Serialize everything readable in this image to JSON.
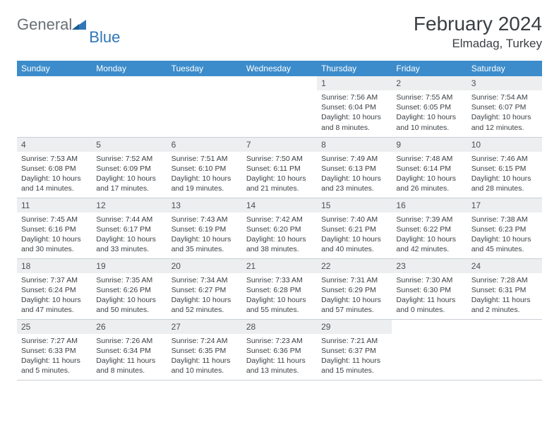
{
  "brand": {
    "word1": "General",
    "word2": "Blue",
    "color_gray": "#6a6f73",
    "color_blue": "#2f77b8"
  },
  "title": "February 2024",
  "location": "Elmadag, Turkey",
  "theme": {
    "header_bg": "#3c8ccb",
    "header_fg": "#ffffff",
    "daynum_bg": "#eceeef",
    "border": "#c9d0d6",
    "text": "#3a3f44"
  },
  "weekdays": [
    "Sunday",
    "Monday",
    "Tuesday",
    "Wednesday",
    "Thursday",
    "Friday",
    "Saturday"
  ],
  "leading_blanks": 4,
  "days": [
    {
      "n": 1,
      "sr": "7:56 AM",
      "ss": "6:04 PM",
      "dl": "10 hours and 8 minutes."
    },
    {
      "n": 2,
      "sr": "7:55 AM",
      "ss": "6:05 PM",
      "dl": "10 hours and 10 minutes."
    },
    {
      "n": 3,
      "sr": "7:54 AM",
      "ss": "6:07 PM",
      "dl": "10 hours and 12 minutes."
    },
    {
      "n": 4,
      "sr": "7:53 AM",
      "ss": "6:08 PM",
      "dl": "10 hours and 14 minutes."
    },
    {
      "n": 5,
      "sr": "7:52 AM",
      "ss": "6:09 PM",
      "dl": "10 hours and 17 minutes."
    },
    {
      "n": 6,
      "sr": "7:51 AM",
      "ss": "6:10 PM",
      "dl": "10 hours and 19 minutes."
    },
    {
      "n": 7,
      "sr": "7:50 AM",
      "ss": "6:11 PM",
      "dl": "10 hours and 21 minutes."
    },
    {
      "n": 8,
      "sr": "7:49 AM",
      "ss": "6:13 PM",
      "dl": "10 hours and 23 minutes."
    },
    {
      "n": 9,
      "sr": "7:48 AM",
      "ss": "6:14 PM",
      "dl": "10 hours and 26 minutes."
    },
    {
      "n": 10,
      "sr": "7:46 AM",
      "ss": "6:15 PM",
      "dl": "10 hours and 28 minutes."
    },
    {
      "n": 11,
      "sr": "7:45 AM",
      "ss": "6:16 PM",
      "dl": "10 hours and 30 minutes."
    },
    {
      "n": 12,
      "sr": "7:44 AM",
      "ss": "6:17 PM",
      "dl": "10 hours and 33 minutes."
    },
    {
      "n": 13,
      "sr": "7:43 AM",
      "ss": "6:19 PM",
      "dl": "10 hours and 35 minutes."
    },
    {
      "n": 14,
      "sr": "7:42 AM",
      "ss": "6:20 PM",
      "dl": "10 hours and 38 minutes."
    },
    {
      "n": 15,
      "sr": "7:40 AM",
      "ss": "6:21 PM",
      "dl": "10 hours and 40 minutes."
    },
    {
      "n": 16,
      "sr": "7:39 AM",
      "ss": "6:22 PM",
      "dl": "10 hours and 42 minutes."
    },
    {
      "n": 17,
      "sr": "7:38 AM",
      "ss": "6:23 PM",
      "dl": "10 hours and 45 minutes."
    },
    {
      "n": 18,
      "sr": "7:37 AM",
      "ss": "6:24 PM",
      "dl": "10 hours and 47 minutes."
    },
    {
      "n": 19,
      "sr": "7:35 AM",
      "ss": "6:26 PM",
      "dl": "10 hours and 50 minutes."
    },
    {
      "n": 20,
      "sr": "7:34 AM",
      "ss": "6:27 PM",
      "dl": "10 hours and 52 minutes."
    },
    {
      "n": 21,
      "sr": "7:33 AM",
      "ss": "6:28 PM",
      "dl": "10 hours and 55 minutes."
    },
    {
      "n": 22,
      "sr": "7:31 AM",
      "ss": "6:29 PM",
      "dl": "10 hours and 57 minutes."
    },
    {
      "n": 23,
      "sr": "7:30 AM",
      "ss": "6:30 PM",
      "dl": "11 hours and 0 minutes."
    },
    {
      "n": 24,
      "sr": "7:28 AM",
      "ss": "6:31 PM",
      "dl": "11 hours and 2 minutes."
    },
    {
      "n": 25,
      "sr": "7:27 AM",
      "ss": "6:33 PM",
      "dl": "11 hours and 5 minutes."
    },
    {
      "n": 26,
      "sr": "7:26 AM",
      "ss": "6:34 PM",
      "dl": "11 hours and 8 minutes."
    },
    {
      "n": 27,
      "sr": "7:24 AM",
      "ss": "6:35 PM",
      "dl": "11 hours and 10 minutes."
    },
    {
      "n": 28,
      "sr": "7:23 AM",
      "ss": "6:36 PM",
      "dl": "11 hours and 13 minutes."
    },
    {
      "n": 29,
      "sr": "7:21 AM",
      "ss": "6:37 PM",
      "dl": "11 hours and 15 minutes."
    }
  ],
  "labels": {
    "sunrise": "Sunrise:",
    "sunset": "Sunset:",
    "daylight": "Daylight:"
  }
}
